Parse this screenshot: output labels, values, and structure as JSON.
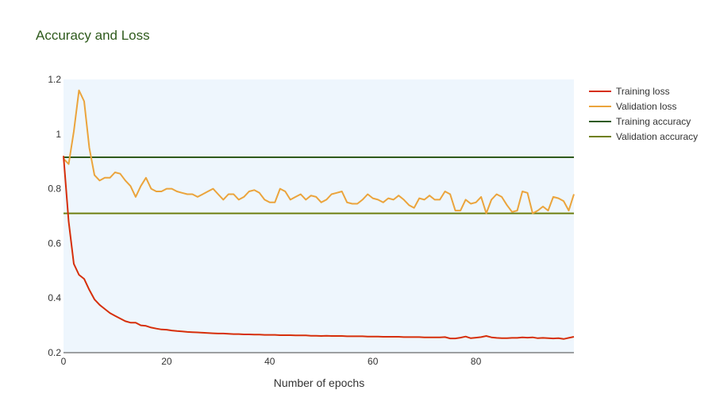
{
  "chart_data": {
    "type": "line",
    "title": "Accuracy and Loss",
    "xlabel": "Number of epochs",
    "ylabel": "",
    "xlim": [
      0,
      99
    ],
    "ylim": [
      0.2,
      1.2
    ],
    "x_ticks": [
      0,
      20,
      40,
      60,
      80
    ],
    "y_ticks": [
      0.2,
      0.4,
      0.6,
      0.8,
      1,
      1.2
    ],
    "y_tick_labels": [
      "0.2",
      "0.4",
      "0.6",
      "0.8",
      "1",
      "1.2"
    ],
    "grid": false,
    "legend_position": "top-right",
    "plot_background": "#eef6fd",
    "series": [
      {
        "name": "Training loss",
        "color": "#d62f0a",
        "x": [
          0,
          1,
          2,
          3,
          4,
          5,
          6,
          7,
          8,
          9,
          10,
          11,
          12,
          13,
          14,
          15,
          16,
          17,
          18,
          19,
          20,
          21,
          22,
          23,
          24,
          25,
          26,
          27,
          28,
          29,
          30,
          31,
          32,
          33,
          34,
          35,
          36,
          37,
          38,
          39,
          40,
          41,
          42,
          43,
          44,
          45,
          46,
          47,
          48,
          49,
          50,
          51,
          52,
          53,
          54,
          55,
          56,
          57,
          58,
          59,
          60,
          61,
          62,
          63,
          64,
          65,
          66,
          67,
          68,
          69,
          70,
          71,
          72,
          73,
          74,
          75,
          76,
          77,
          78,
          79,
          80,
          81,
          82,
          83,
          84,
          85,
          86,
          87,
          88,
          89,
          90,
          91,
          92,
          93,
          94,
          95,
          96,
          97,
          98,
          99
        ],
        "values": [
          0.92,
          0.68,
          0.525,
          0.485,
          0.47,
          0.43,
          0.395,
          0.375,
          0.36,
          0.345,
          0.335,
          0.325,
          0.315,
          0.31,
          0.31,
          0.3,
          0.298,
          0.292,
          0.288,
          0.285,
          0.284,
          0.281,
          0.279,
          0.278,
          0.276,
          0.275,
          0.274,
          0.273,
          0.272,
          0.271,
          0.27,
          0.27,
          0.269,
          0.268,
          0.268,
          0.267,
          0.267,
          0.266,
          0.266,
          0.265,
          0.265,
          0.265,
          0.264,
          0.264,
          0.264,
          0.263,
          0.263,
          0.263,
          0.262,
          0.262,
          0.261,
          0.262,
          0.261,
          0.261,
          0.261,
          0.26,
          0.26,
          0.26,
          0.26,
          0.259,
          0.259,
          0.259,
          0.258,
          0.258,
          0.258,
          0.258,
          0.257,
          0.257,
          0.257,
          0.257,
          0.256,
          0.256,
          0.256,
          0.256,
          0.257,
          0.252,
          0.252,
          0.255,
          0.259,
          0.253,
          0.255,
          0.257,
          0.261,
          0.256,
          0.254,
          0.253,
          0.253,
          0.254,
          0.254,
          0.256,
          0.255,
          0.256,
          0.253,
          0.254,
          0.253,
          0.252,
          0.253,
          0.25,
          0.254,
          0.258
        ]
      },
      {
        "name": "Validation loss",
        "color": "#eba43c",
        "x": [
          0,
          1,
          2,
          3,
          4,
          5,
          6,
          7,
          8,
          9,
          10,
          11,
          12,
          13,
          14,
          15,
          16,
          17,
          18,
          19,
          20,
          21,
          22,
          23,
          24,
          25,
          26,
          27,
          28,
          29,
          30,
          31,
          32,
          33,
          34,
          35,
          36,
          37,
          38,
          39,
          40,
          41,
          42,
          43,
          44,
          45,
          46,
          47,
          48,
          49,
          50,
          51,
          52,
          53,
          54,
          55,
          56,
          57,
          58,
          59,
          60,
          61,
          62,
          63,
          64,
          65,
          66,
          67,
          68,
          69,
          70,
          71,
          72,
          73,
          74,
          75,
          76,
          77,
          78,
          79,
          80,
          81,
          82,
          83,
          84,
          85,
          86,
          87,
          88,
          89,
          90,
          91,
          92,
          93,
          94,
          95,
          96,
          97,
          98,
          99
        ],
        "values": [
          0.91,
          0.89,
          1.01,
          1.16,
          1.12,
          0.95,
          0.85,
          0.83,
          0.84,
          0.84,
          0.86,
          0.855,
          0.83,
          0.81,
          0.77,
          0.81,
          0.84,
          0.8,
          0.79,
          0.79,
          0.8,
          0.8,
          0.79,
          0.785,
          0.78,
          0.78,
          0.77,
          0.78,
          0.79,
          0.8,
          0.78,
          0.76,
          0.78,
          0.78,
          0.76,
          0.77,
          0.79,
          0.795,
          0.785,
          0.76,
          0.75,
          0.75,
          0.8,
          0.79,
          0.76,
          0.77,
          0.78,
          0.76,
          0.775,
          0.77,
          0.75,
          0.76,
          0.78,
          0.785,
          0.79,
          0.75,
          0.745,
          0.745,
          0.76,
          0.78,
          0.765,
          0.76,
          0.75,
          0.765,
          0.76,
          0.775,
          0.76,
          0.74,
          0.73,
          0.765,
          0.76,
          0.775,
          0.76,
          0.76,
          0.79,
          0.78,
          0.72,
          0.72,
          0.76,
          0.745,
          0.75,
          0.77,
          0.71,
          0.76,
          0.78,
          0.77,
          0.74,
          0.715,
          0.72,
          0.79,
          0.785,
          0.71,
          0.72,
          0.735,
          0.72,
          0.77,
          0.765,
          0.755,
          0.72,
          0.78
        ]
      },
      {
        "name": "Training accuracy",
        "color": "#2e5a1c",
        "x": [
          0,
          99
        ],
        "values": [
          0.915,
          0.915
        ]
      },
      {
        "name": "Validation accuracy",
        "color": "#6f7f10",
        "x": [
          0,
          99
        ],
        "values": [
          0.71,
          0.71
        ]
      }
    ]
  }
}
